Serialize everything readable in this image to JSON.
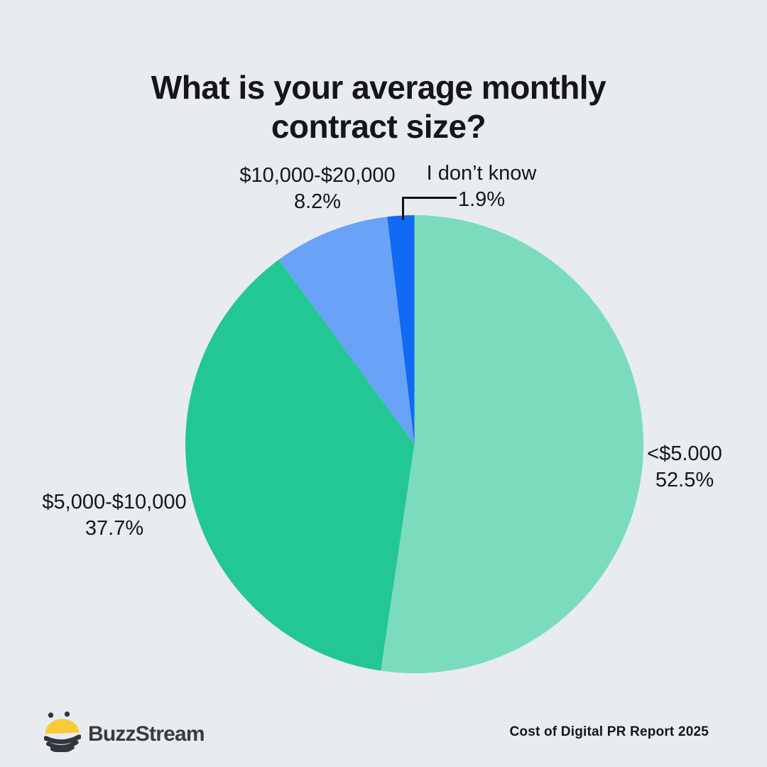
{
  "title": {
    "line1": "What is your average monthly",
    "line2": "contract size?"
  },
  "chart_data": {
    "type": "pie",
    "title": "What is your average monthly contract size?",
    "start_angle_deg": 0,
    "direction": "clockwise",
    "labels_position": "outside",
    "slices": [
      {
        "label": "<$5.000",
        "value": 52.5,
        "pct_label": "52.5%",
        "color": "#7bdcbd"
      },
      {
        "label": "$5,000-$10,000",
        "value": 37.7,
        "pct_label": "37.7%",
        "color": "#23c794"
      },
      {
        "label": "$10,000-$20,000",
        "value": 8.2,
        "pct_label": "8.2%",
        "color": "#6aa2f8"
      },
      {
        "label": "I don’t know",
        "value": 1.9,
        "pct_label": "1.9%",
        "color": "#116af3"
      }
    ]
  },
  "footer": {
    "brand": "BuzzStream",
    "source": "Cost of Digital PR Report 2025"
  },
  "colors": {
    "background": "#e8ecef",
    "text": "#15151b",
    "leader_line": "#111111",
    "brand_text": "#353c44",
    "bee_yellow": "#f9cb38",
    "bee_dark": "#31373d"
  }
}
